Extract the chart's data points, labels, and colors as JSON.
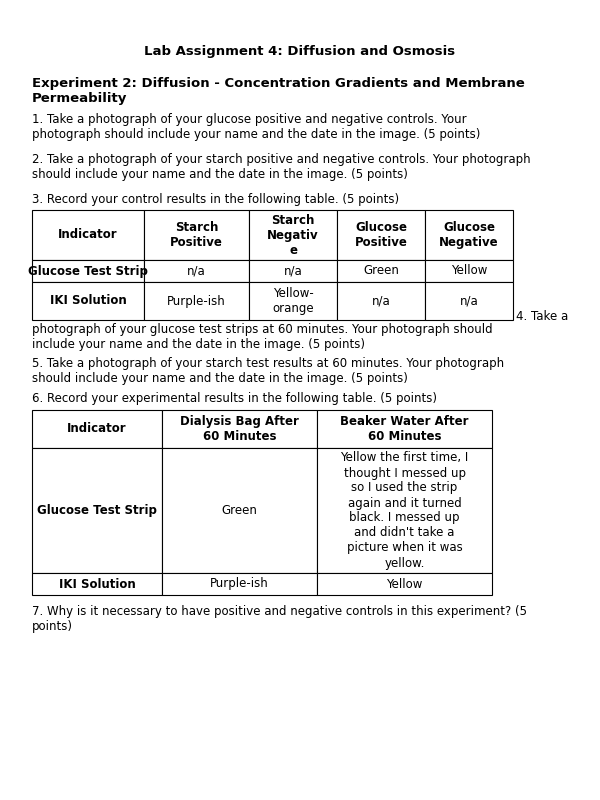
{
  "title": "Lab Assignment 4: Diffusion and Osmosis",
  "subtitle": "Experiment 2: Diffusion - Concentration Gradients and Membrane\nPermeability",
  "q1": "1. Take a photograph of your glucose positive and negative controls. Your\nphotograph should include your name and the date in the image. (5 points)",
  "q2": "2. Take a photograph of your starch positive and negative controls. Your photograph\nshould include your name and the date in the image. (5 points)",
  "q3": "3. Record your control results in the following table. (5 points)",
  "q4_right": "4. Take a",
  "q4_cont": "photograph of your glucose test strips at 60 minutes. Your photograph should\ninclude your name and the date in the image. (5 points)",
  "q5": "5. Take a photograph of your starch test results at 60 minutes. Your photograph\nshould include your name and the date in the image. (5 points)",
  "q6": "6. Record your experimental results in the following table. (5 points)",
  "q7": "7. Why is it necessary to have positive and negative controls in this experiment? (5\npoints)",
  "table1_headers": [
    "Indicator",
    "Starch\nPositive",
    "Starch\nNegativ\ne",
    "Glucose\nPositive",
    "Glucose\nNegative"
  ],
  "table1_row1": [
    "Glucose Test Strip",
    "n/a",
    "n/a",
    "Green",
    "Yellow"
  ],
  "table1_row2": [
    "IKI Solution",
    "Purple-ish",
    "Yellow-\norange",
    "n/a",
    "n/a"
  ],
  "table2_headers": [
    "Indicator",
    "Dialysis Bag After\n60 Minutes",
    "Beaker Water After\n60 Minutes"
  ],
  "table2_row1_c1": "Glucose Test Strip",
  "table2_row1_c2": "Green",
  "table2_row1_c3": "Yellow the first time, I\nthought I messed up\nso I used the strip\nagain and it turned\nblack. I messed up\nand didn't take a\npicture when it was\nyellow.",
  "table2_row2": [
    "IKI Solution",
    "Purple-ish",
    "Yellow"
  ],
  "bg_color": "#ffffff",
  "text_color": "#000000",
  "font_size": 8.5,
  "title_font_size": 9.5,
  "subtitle_font_size": 9.5
}
